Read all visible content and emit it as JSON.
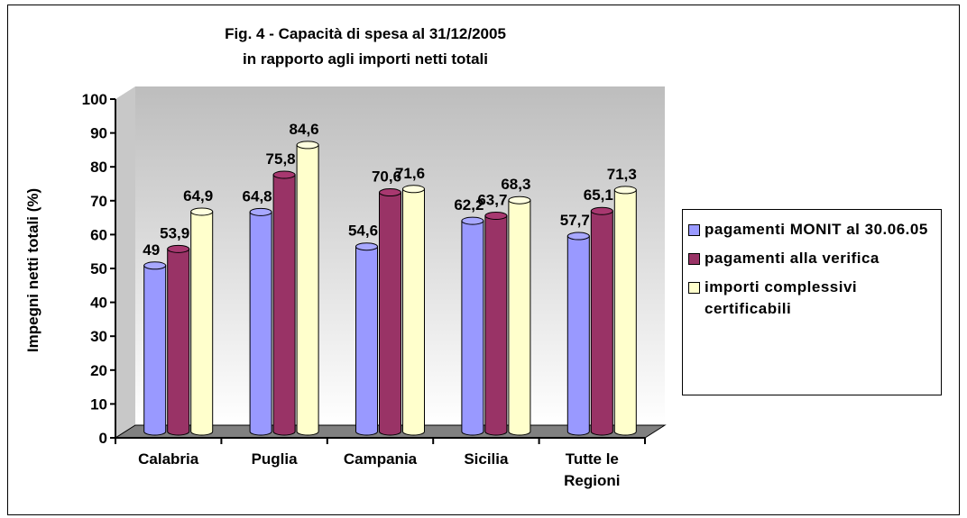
{
  "chart_data": {
    "type": "bar",
    "title": "Fig. 4 - Capacità di spesa al 31/12/2005",
    "subtitle": "in rapporto agli importi netti totali",
    "y_label": "Impegni netti totali (%)",
    "categories": [
      "Calabria",
      "Puglia",
      "Campania",
      "Sicilia",
      "Tutte le Regioni"
    ],
    "series": [
      {
        "name": "pagamenti MONIT al 30.06.05",
        "color": "#9999ff",
        "values": [
          49,
          64.8,
          54.6,
          62.2,
          57.7
        ],
        "value_labels": [
          "49",
          "64,8",
          "54,6",
          "62,2",
          "57,7"
        ]
      },
      {
        "name": "pagamenti alla verifica",
        "color": "#993366",
        "values": [
          53.9,
          75.8,
          70.6,
          63.7,
          65.1
        ],
        "value_labels": [
          "53,9",
          "75,8",
          "70,6",
          "63,7",
          "65,1"
        ]
      },
      {
        "name": "importi complessivi certificabili",
        "color": "#ffffcc",
        "values": [
          64.9,
          84.6,
          71.6,
          68.3,
          71.3
        ],
        "value_labels": [
          "64,9",
          "84,6",
          "71,6",
          "68,3",
          "71,3"
        ]
      }
    ],
    "ylim": [
      0,
      100
    ],
    "yticks": [
      0,
      10,
      20,
      30,
      40,
      50,
      60,
      70,
      80,
      90,
      100
    ]
  }
}
